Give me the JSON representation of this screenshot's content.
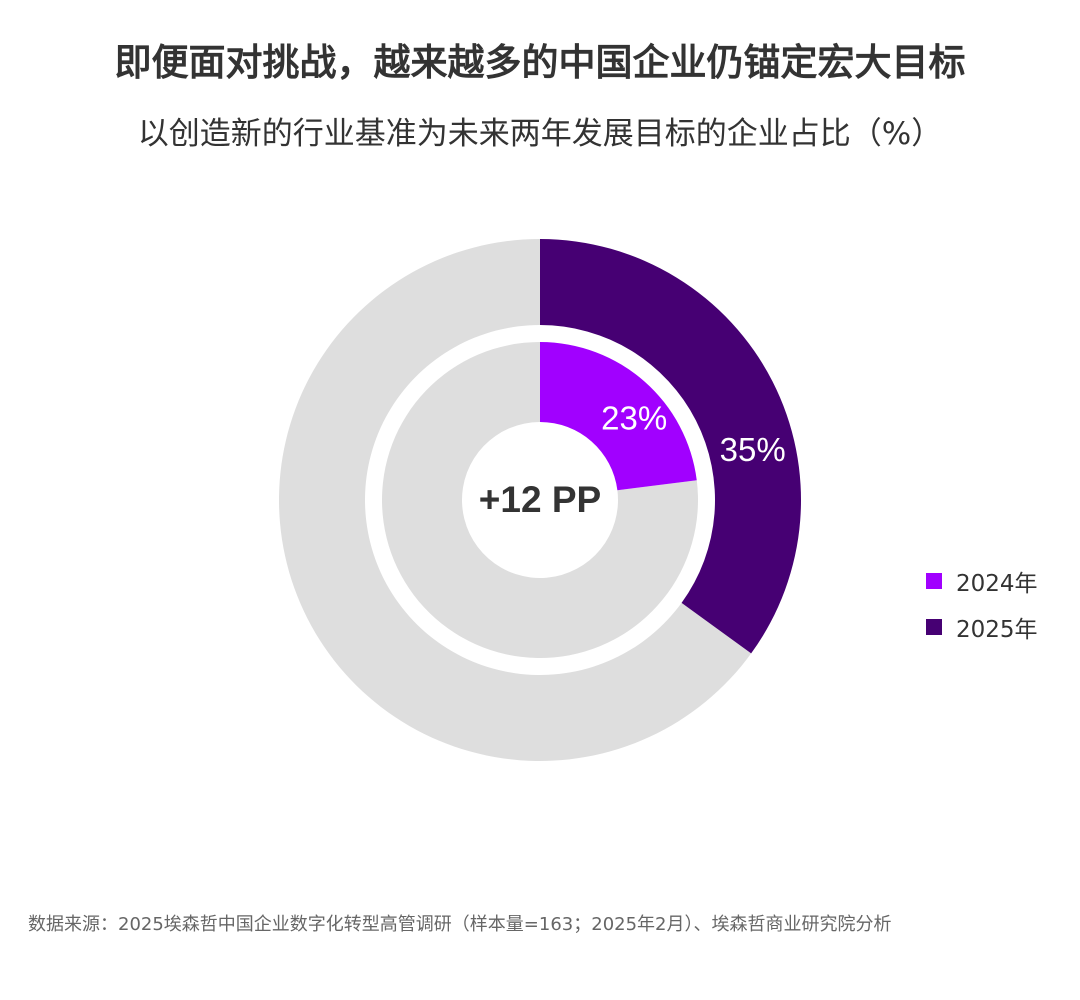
{
  "title": "即便面对挑战，越来越多的中国企业仍锚定宏大目标",
  "subtitle": "以创造新的行业基准为未来两年发展目标的企业占比（%）",
  "chart_data": {
    "type": "pie",
    "subtype": "nested-donut",
    "title": "即便面对挑战，越来越多的中国企业仍锚定宏大目标",
    "subtitle": "以创造新的行业基准为未来两年发展目标的企业占比（%）",
    "unit": "%",
    "series": [
      {
        "name": "2024年",
        "value": 23,
        "label": "23%",
        "color": "#A100FF",
        "ring": "inner"
      },
      {
        "name": "2025年",
        "value": 35,
        "label": "35%",
        "color": "#460073",
        "ring": "outer"
      }
    ],
    "remainder_color": "#DEDEDE",
    "center_label": "+12 PP",
    "legend_position": "right"
  },
  "legend": [
    "2024年",
    "2025年"
  ],
  "source": "数据来源：2025埃森哲中国企业数字化转型高管调研（样本量=163；2025年2月）、埃森哲商业研究院分析"
}
